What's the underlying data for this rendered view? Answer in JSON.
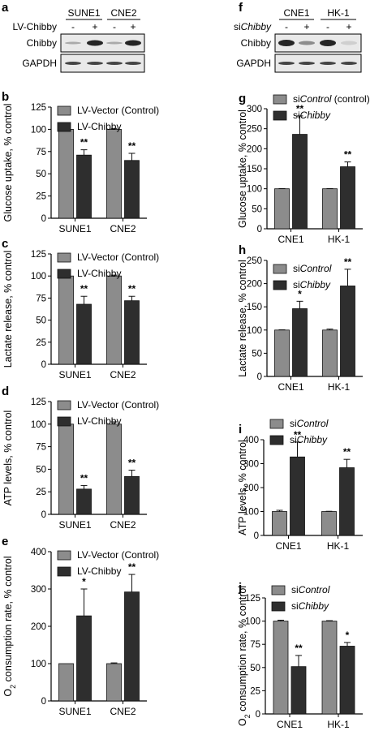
{
  "blots": [
    {
      "letter": "a",
      "treatment_label": "LV-Chibby",
      "cell_lines": [
        "SUNE1",
        "CNE2"
      ],
      "lanes": [
        "-",
        "+",
        "-",
        "+"
      ],
      "rows": [
        "Chibby",
        "GAPDH"
      ]
    },
    {
      "letter": "f",
      "treatment_label": "si",
      "treatment_label_italic": "Chibby",
      "cell_lines": [
        "CNE1",
        "HK-1"
      ],
      "lanes": [
        "-",
        "+",
        "-",
        "+"
      ],
      "rows": [
        "Chibby",
        "GAPDH"
      ]
    }
  ],
  "colors": {
    "control": "#8c8c8c",
    "treated": "#2e2e2e",
    "text": "#000000"
  },
  "chart_data": [
    {
      "letter": "b",
      "type": "bar",
      "categories": [
        "SUNE1",
        "CNE2"
      ],
      "ylabel": "Glucose uptake, % control",
      "ylim": [
        0,
        125
      ],
      "yticks": [
        0,
        25,
        50,
        75,
        100,
        125
      ],
      "legend_position": "top-left",
      "series": [
        {
          "name": "LV-Vector (Control)",
          "values": [
            100,
            100
          ],
          "errors": [
            1,
            1
          ],
          "annotations": [
            "",
            ""
          ]
        },
        {
          "name": "LV-Chibby",
          "values": [
            71,
            65
          ],
          "errors": [
            6,
            8
          ],
          "annotations": [
            "**",
            "**"
          ]
        }
      ]
    },
    {
      "letter": "c",
      "type": "bar",
      "categories": [
        "SUNE1",
        "CNE2"
      ],
      "ylabel": "Lactate release, % control",
      "ylim": [
        0,
        125
      ],
      "yticks": [
        0,
        25,
        50,
        75,
        100,
        125
      ],
      "legend_position": "top-left",
      "series": [
        {
          "name": "LV-Vector (Control)",
          "values": [
            100,
            100
          ],
          "errors": [
            1,
            1
          ],
          "annotations": [
            "",
            ""
          ]
        },
        {
          "name": "LV-Chibby",
          "values": [
            68,
            72
          ],
          "errors": [
            9,
            5
          ],
          "annotations": [
            "**",
            "**"
          ]
        }
      ]
    },
    {
      "letter": "d",
      "type": "bar",
      "categories": [
        "SUNE1",
        "CNE2"
      ],
      "ylabel": "ATP levels, % control",
      "ylim": [
        0,
        125
      ],
      "yticks": [
        0,
        25,
        50,
        75,
        100,
        125
      ],
      "legend_position": "top-left",
      "series": [
        {
          "name": "LV-Vector (Control)",
          "values": [
            100,
            100
          ],
          "errors": [
            0.5,
            2.5
          ],
          "annotations": [
            "",
            ""
          ]
        },
        {
          "name": "LV-Chibby",
          "values": [
            28,
            42
          ],
          "errors": [
            4,
            7
          ],
          "annotations": [
            "**",
            "**"
          ]
        }
      ]
    },
    {
      "letter": "e",
      "type": "bar",
      "categories": [
        "SUNE1",
        "CNE2"
      ],
      "ylabel_prefix": "O",
      "ylabel_sub": "2",
      "ylabel": " consumption rate, % control",
      "ylim": [
        0,
        400
      ],
      "yticks": [
        0,
        100,
        200,
        300,
        400
      ],
      "legend_position": "top-left",
      "series": [
        {
          "name": "LV-Vector (Control)",
          "values": [
            100,
            100
          ],
          "errors": [
            0,
            2
          ],
          "annotations": [
            "",
            ""
          ]
        },
        {
          "name": "LV-Chibby",
          "values": [
            228,
            292
          ],
          "errors": [
            72,
            47
          ],
          "annotations": [
            "*",
            "**"
          ]
        }
      ]
    },
    {
      "letter": "g",
      "type": "bar",
      "categories": [
        "CNE1",
        "HK-1"
      ],
      "ylabel": "Glucose uptake, % control",
      "ylim": [
        0,
        300
      ],
      "yticks": [
        0,
        50,
        100,
        150,
        200,
        250,
        300
      ],
      "legend_position": "top-left",
      "series": [
        {
          "name_prefix": "si",
          "name": "Control",
          "name_suffix": " (control)",
          "values": [
            100,
            100
          ],
          "errors": [
            0.5,
            0.5
          ],
          "annotations": [
            "",
            ""
          ]
        },
        {
          "name_prefix": "si",
          "name": "Chibby",
          "name_suffix": "",
          "values": [
            236,
            155
          ],
          "errors": [
            46,
            12
          ],
          "annotations": [
            "**",
            "**"
          ]
        }
      ]
    },
    {
      "letter": "h",
      "type": "bar",
      "categories": [
        "CNE1",
        "HK-1"
      ],
      "ylabel": "Lactate release, % control",
      "ylim": [
        0,
        250
      ],
      "yticks": [
        0,
        50,
        100,
        150,
        200,
        250
      ],
      "legend_position": "top-left",
      "series": [
        {
          "name_prefix": "si",
          "name": "Control",
          "name_suffix": "",
          "values": [
            100,
            100
          ],
          "errors": [
            0.5,
            2
          ],
          "annotations": [
            "",
            ""
          ]
        },
        {
          "name_prefix": "si",
          "name": "Chibby",
          "name_suffix": "",
          "values": [
            146,
            195
          ],
          "errors": [
            16,
            36
          ],
          "annotations": [
            "*",
            "**"
          ]
        }
      ]
    },
    {
      "letter": "i",
      "type": "bar",
      "categories": [
        "CNE1",
        "HK-1"
      ],
      "ylabel": "ATP levels, % control",
      "ylim": [
        0,
        400
      ],
      "yticks": [
        0,
        100,
        200,
        300,
        400
      ],
      "legend_position": "top-left",
      "series": [
        {
          "name_prefix": "si",
          "name": "Control",
          "name_suffix": "",
          "values": [
            100,
            100
          ],
          "errors": [
            5,
            1
          ],
          "annotations": [
            "",
            ""
          ]
        },
        {
          "name_prefix": "si",
          "name": "Chibby",
          "name_suffix": "",
          "values": [
            328,
            283
          ],
          "errors": [
            62,
            35
          ],
          "annotations": [
            "**",
            "**"
          ]
        }
      ]
    },
    {
      "letter": "j",
      "type": "bar",
      "categories": [
        "CNE1",
        "HK-1"
      ],
      "ylabel_prefix": "O",
      "ylabel_sub": "2",
      "ylabel": " consumption rate, % control",
      "ylim": [
        0,
        125
      ],
      "yticks": [
        0,
        25,
        50,
        75,
        100,
        125
      ],
      "legend_position": "top-left",
      "series": [
        {
          "name_prefix": "si",
          "name": "Control",
          "name_suffix": "",
          "values": [
            100,
            100
          ],
          "errors": [
            1,
            0.5
          ],
          "annotations": [
            "",
            ""
          ]
        },
        {
          "name_prefix": "si",
          "name": "Chibby",
          "name_suffix": "",
          "values": [
            51,
            73
          ],
          "errors": [
            12,
            4
          ],
          "annotations": [
            "**",
            "*"
          ]
        }
      ]
    }
  ]
}
